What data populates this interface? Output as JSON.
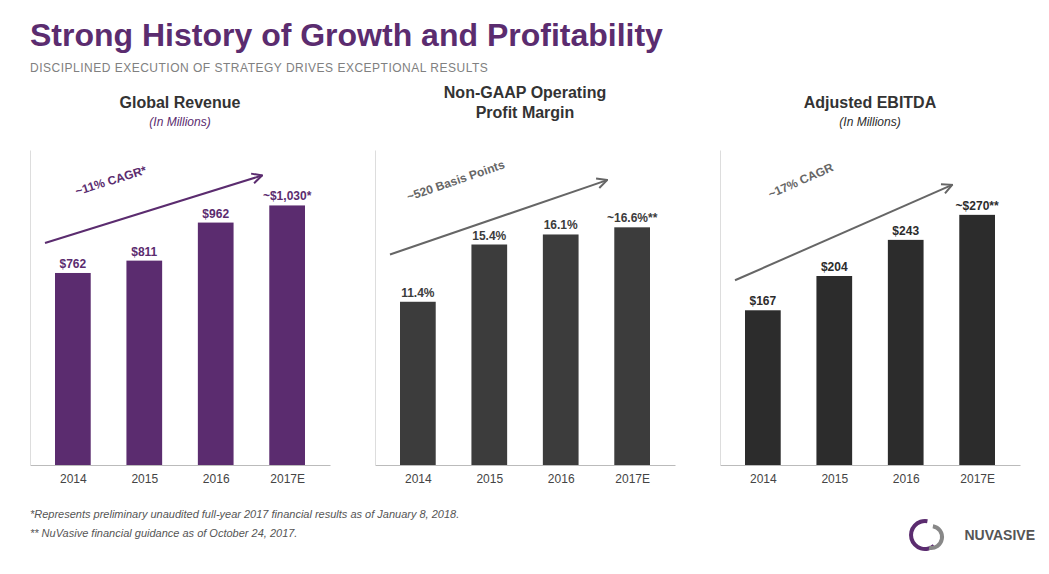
{
  "title": "Strong History of Growth and Profitability",
  "subtitle": "DISCIPLINED EXECUTION OF STRATEGY DRIVES EXCEPTIONAL RESULTS",
  "color": "#5B2C6F",
  "footnotes": [
    "*Represents preliminary unaudited full-year 2017 financial results as of January 8, 2018.",
    "** NuVasive financial guidance as of October 24, 2017."
  ],
  "annotations": [
    "NUVASIVE"
  ],
  "chart_data": [
    {
      "type": "bar",
      "title": "Global Revenue",
      "subtitle": "(In Millions)",
      "categories": [
        "2014",
        "2015",
        "2016",
        "2017E"
      ],
      "values": [
        762,
        811,
        962,
        1030
      ],
      "value_labels": [
        "$762",
        "$811",
        "$962",
        "~$1,030*"
      ],
      "color": "#5B2C6F",
      "data_labels": true,
      "ylim": [
        0,
        1250
      ],
      "tick_labels": "x",
      "annotation": {
        "text": "~11% CAGR*",
        "color": "#5B2C6F"
      }
    },
    {
      "type": "bar",
      "title": "Non-GAAP Operating\nProfit Margin",
      "categories": [
        "2014",
        "2015",
        "2016",
        "2017E"
      ],
      "values": [
        11.4,
        15.4,
        16.1,
        16.6
      ],
      "value_labels": [
        "11.4%",
        "15.4%",
        "16.1%",
        "~16.6%**"
      ],
      "color": "#3C3C3C",
      "data_labels": true,
      "ylim": [
        0,
        22
      ],
      "tick_labels": "x",
      "annotation": {
        "text": "~520 Basis Points",
        "color": "#666666"
      }
    },
    {
      "type": "bar",
      "title": "Adjusted EBITDA",
      "subtitle": "(In Millions)",
      "categories": [
        "2014",
        "2015",
        "2016",
        "2017E"
      ],
      "values": [
        167,
        204,
        243,
        270
      ],
      "value_labels": [
        "$167",
        "$204",
        "$243",
        "~$270**"
      ],
      "color": "#2C2C2C",
      "data_labels": true,
      "ylim": [
        0,
        340
      ],
      "tick_labels": "x",
      "annotation": {
        "text": "~17% CAGR",
        "color": "#666666"
      }
    }
  ]
}
